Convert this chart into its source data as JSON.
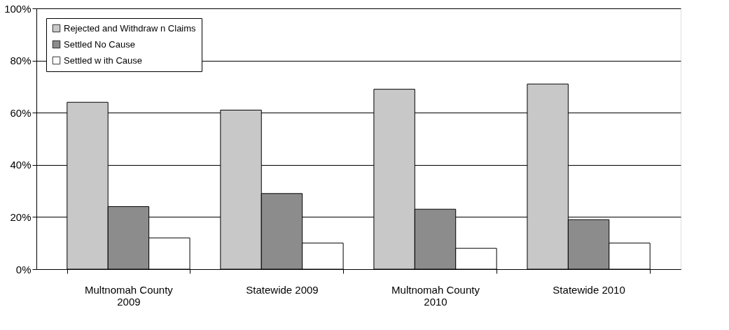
{
  "chart_data": {
    "type": "bar",
    "categories": [
      "Multnomah County\n2009",
      "Statewide 2009",
      "Multnomah County\n2010",
      "Statewide 2010"
    ],
    "series": [
      {
        "name": "Rejected and Withdraw n Claims",
        "color": "#c8c8c8",
        "values": [
          64,
          61,
          69,
          71
        ]
      },
      {
        "name": "Settled No Cause",
        "color": "#8c8c8c",
        "values": [
          24,
          29,
          23,
          19
        ]
      },
      {
        "name": "Settled w ith Cause",
        "color": "#ffffff",
        "values": [
          12,
          10,
          8,
          10
        ]
      }
    ],
    "ylim": [
      0,
      100
    ],
    "yticks": [
      {
        "value": 0,
        "label": "0%"
      },
      {
        "value": 20,
        "label": "20%"
      },
      {
        "value": 40,
        "label": "40%"
      },
      {
        "value": 60,
        "label": "60%"
      },
      {
        "value": 80,
        "label": "80%"
      },
      {
        "value": 100,
        "label": "100%"
      }
    ],
    "grid": "y",
    "legend": "top left"
  }
}
